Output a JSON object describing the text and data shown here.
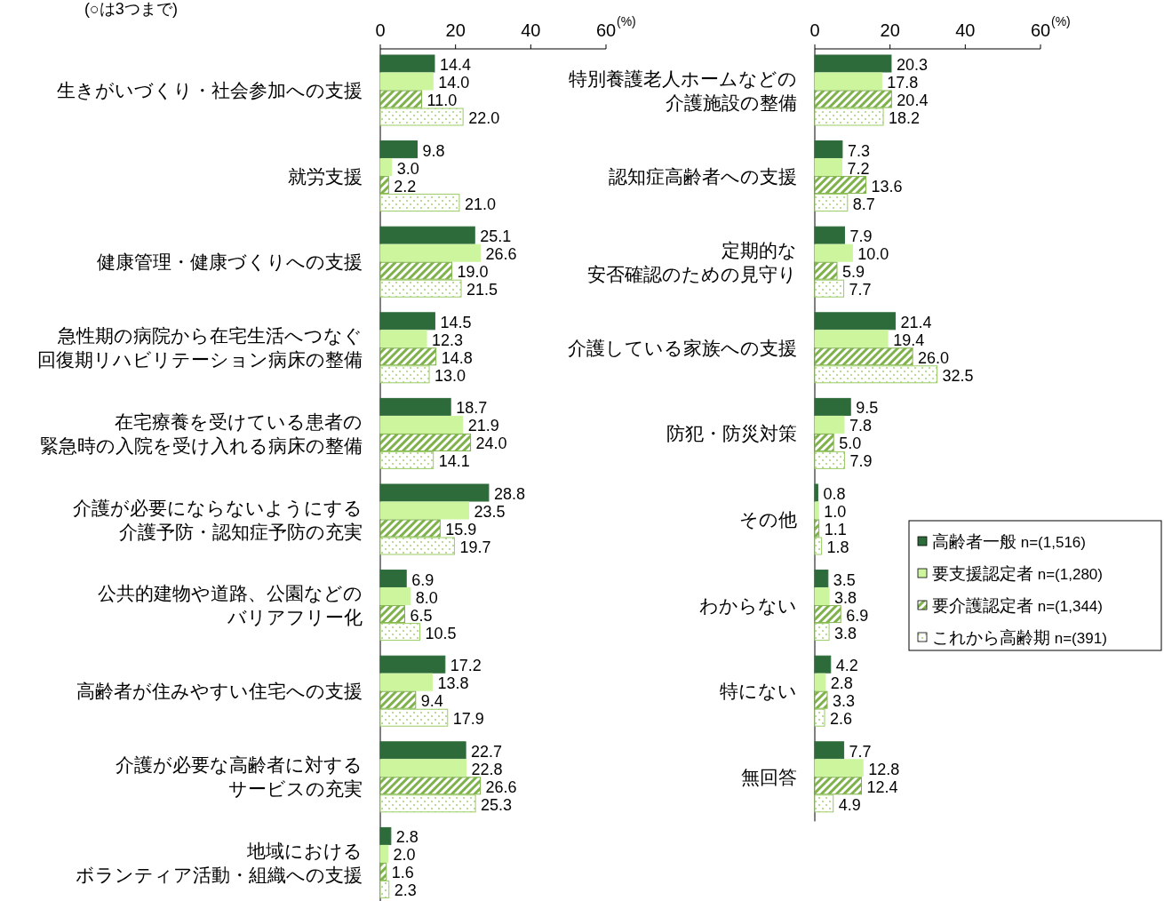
{
  "chart_data": [
    {
      "type": "bar",
      "orientation": "horizontal",
      "subtitle": "(○は3つまで)",
      "xlabel": "(%)",
      "xlim": [
        0,
        60
      ],
      "xticks": [
        0,
        20,
        40,
        60
      ],
      "categories": [
        "生きがいづくり・社会参加への支援",
        "就労支援",
        "健康管理・健康づくりへの支援",
        "急性期の病院から在宅生活へつなぐ回復期リハビリテーション病床の整備",
        "在宅療養を受けている患者の緊急時の入院を受け入れる病床の整備",
        "介護が必要にならないようにする介護予防・認知症予防の充実",
        "公共的建物や道路、公園などのバリアフリー化",
        "高齢者が住みやすい住宅への支援",
        "介護が必要な高齢者に対するサービスの充実",
        "地域におけるボランティア活動・組織への支援"
      ],
      "series": [
        {
          "color": "#2e6b3a",
          "values": [
            14.4,
            9.8,
            25.1,
            14.5,
            18.7,
            28.8,
            6.9,
            17.2,
            22.7,
            2.8
          ],
          "value_labels": [
            "14.4",
            "9.8",
            "25.1",
            "14.5",
            "18.7",
            "28.8",
            "6.9",
            "17.2",
            "22.7",
            "2.8"
          ]
        },
        {
          "color": "#ccf59e",
          "values": [
            14.0,
            3.0,
            26.6,
            12.3,
            21.9,
            23.5,
            8.0,
            13.8,
            22.8,
            2.0
          ],
          "value_labels": [
            "14.0",
            "3.0",
            "26.6",
            "12.3",
            "21.9",
            "23.5",
            "8.0",
            "13.8",
            "22.8",
            "2.0"
          ]
        },
        {
          "color": "#7fb24a",
          "values": [
            11.0,
            2.2,
            19.0,
            14.8,
            24.0,
            15.9,
            6.5,
            9.4,
            26.6,
            1.6
          ],
          "value_labels": [
            "11.0",
            "2.2",
            "19.0",
            "14.8",
            "24.0",
            "15.9",
            "6.5",
            "9.4",
            "26.6",
            "1.6"
          ]
        },
        {
          "color": "#9acb64",
          "values": [
            22.0,
            21.0,
            21.5,
            13.0,
            14.1,
            19.7,
            10.5,
            17.9,
            25.3,
            2.3
          ],
          "value_labels": [
            "22.0",
            "21.0",
            "21.5",
            "13.0",
            "14.1",
            "19.7",
            "10.5",
            "17.9",
            "25.3",
            "2.3"
          ]
        }
      ]
    },
    {
      "type": "bar",
      "orientation": "horizontal",
      "xlabel": "(%)",
      "xlim": [
        0,
        60
      ],
      "xticks": [
        0,
        20,
        40,
        60
      ],
      "legend": "right",
      "categories": [
        "特別養護老人ホームなどの介護施設の整備",
        "認知症高齢者への支援",
        "定期的な安否確認のための見守り",
        "介護している家族への支援",
        "防犯・防災対策",
        "その他",
        "わからない",
        "特にない",
        "無回答"
      ],
      "series": [
        {
          "name": "高齢者一般 n=(1,516)",
          "color": "#2e6b3a",
          "values": [
            20.3,
            7.3,
            7.9,
            21.4,
            9.5,
            0.8,
            3.5,
            4.2,
            7.7
          ],
          "value_labels": [
            "20.3",
            "7.3",
            "7.9",
            "21.4",
            "9.5",
            "0.8",
            "3.5",
            "4.2",
            "7.7"
          ]
        },
        {
          "name": "要支援認定者 n=(1,280)",
          "color": "#ccf59e",
          "values": [
            17.8,
            7.2,
            10.0,
            19.4,
            7.8,
            1.0,
            3.8,
            2.8,
            12.8
          ],
          "value_labels": [
            "17.8",
            "7.2",
            "10.0",
            "19.4",
            "7.8",
            "1.0",
            "3.8",
            "2.8",
            "12.8"
          ]
        },
        {
          "name": "要介護認定者 n=(1,344)",
          "color": "#7fb24a",
          "values": [
            20.4,
            13.6,
            5.9,
            26.0,
            5.0,
            1.1,
            6.9,
            3.3,
            12.4
          ],
          "value_labels": [
            "20.4",
            "13.6",
            "5.9",
            "26.0",
            "5.0",
            "1.1",
            "6.9",
            "3.3",
            "12.4"
          ]
        },
        {
          "name": "これから高齢期 n=(391)",
          "color": "#9acb64",
          "values": [
            18.2,
            8.7,
            7.7,
            32.5,
            7.9,
            1.8,
            3.8,
            2.6,
            4.9
          ],
          "value_labels": [
            "18.2",
            "8.7",
            "7.7",
            "32.5",
            "7.9",
            "1.8",
            "3.8",
            "2.6",
            "4.9"
          ]
        }
      ]
    }
  ]
}
